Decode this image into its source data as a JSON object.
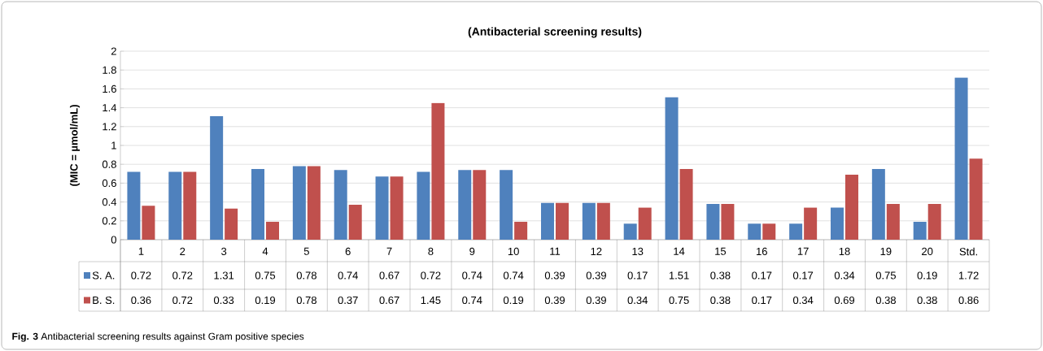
{
  "chart_data": {
    "type": "bar",
    "title": "(Antibacterial screening results)",
    "ylabel": "(MIC = µmol/mL)",
    "annotations": [
      "**Fig. 3** Antibacterial screening results against Gram positive species"
    ],
    "categories": [
      "1",
      "2",
      "3",
      "4",
      "5",
      "6",
      "7",
      "8",
      "9",
      "10",
      "11",
      "12",
      "13",
      "14",
      "15",
      "16",
      "17",
      "18",
      "19",
      "20",
      "Std."
    ],
    "series": [
      {
        "name": "S. A.",
        "color": "#4f81bd",
        "values": [
          0.72,
          0.72,
          1.31,
          0.75,
          0.78,
          0.74,
          0.67,
          0.72,
          0.74,
          0.74,
          0.39,
          0.39,
          0.17,
          1.51,
          0.38,
          0.17,
          0.17,
          0.34,
          0.75,
          0.19,
          1.72
        ]
      },
      {
        "name": "B. S.",
        "color": "#c0504d",
        "values": [
          0.36,
          0.72,
          0.33,
          0.19,
          0.78,
          0.37,
          0.67,
          1.45,
          0.74,
          0.19,
          0.39,
          0.39,
          0.34,
          0.75,
          0.38,
          0.17,
          0.34,
          0.69,
          0.38,
          0.38,
          0.86
        ]
      }
    ],
    "ylim": [
      0,
      2
    ],
    "yticks": [
      0,
      0.2,
      0.4,
      0.6,
      0.8,
      1,
      1.2,
      1.4,
      1.6,
      1.8,
      2
    ],
    "grid": "y",
    "legend": "bottom",
    "data_labels": true
  }
}
